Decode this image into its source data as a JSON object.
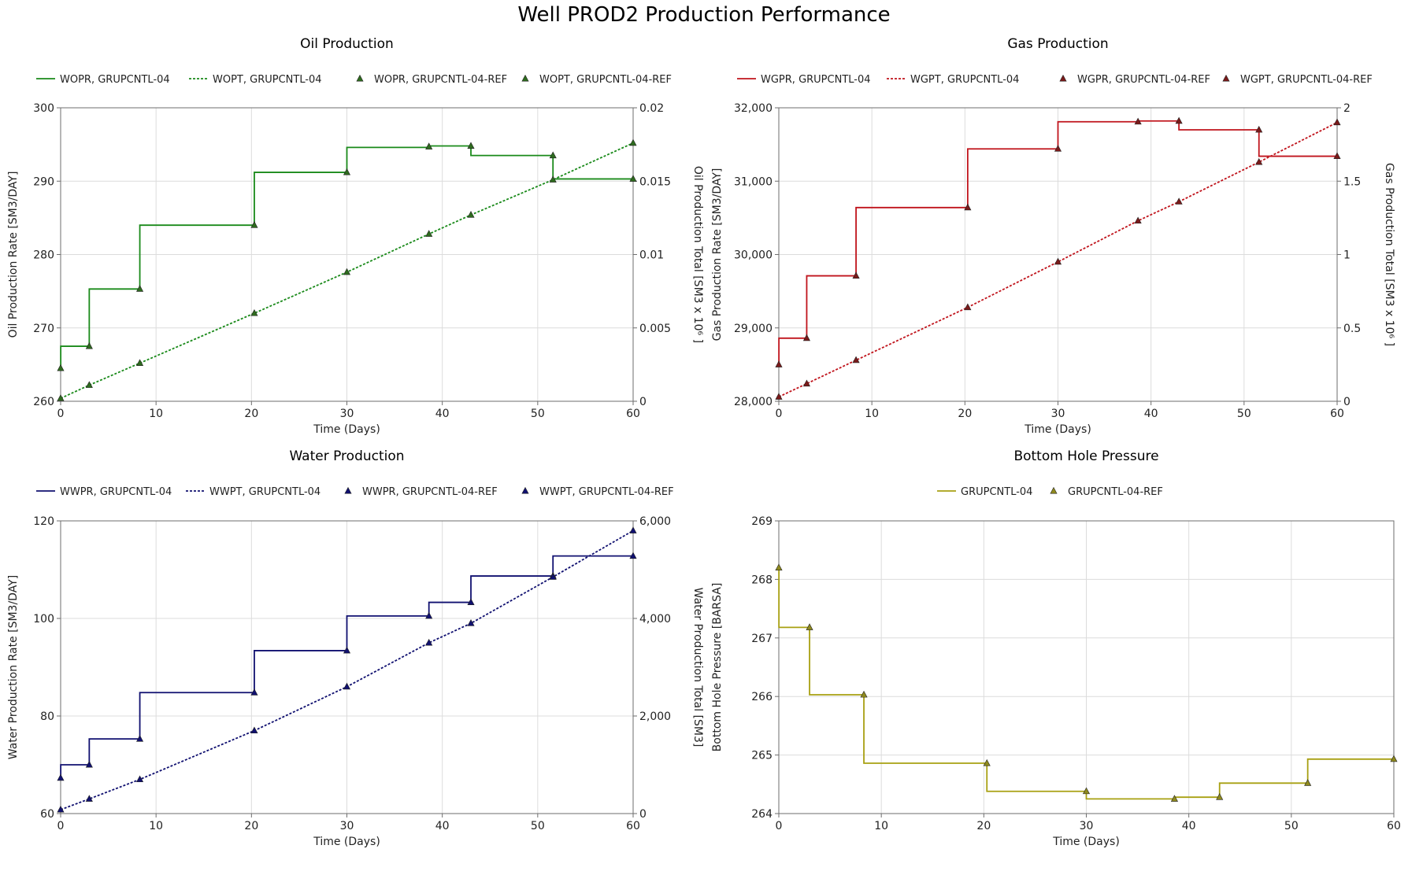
{
  "figure": {
    "title": "Well PROD2 Production Performance"
  },
  "chart_data": [
    {
      "type": "line",
      "title": "Oil Production",
      "xlabel": "Time (Days)",
      "ylabel": "Oil Production Rate [SM3/DAY]",
      "y2label": "Oil Production Total [SM3 x 10⁶ ]",
      "xlim": [
        0,
        60
      ],
      "ylim": [
        260,
        300
      ],
      "y2lim": [
        0,
        0.02
      ],
      "xticks": [
        "0",
        "10",
        "20",
        "30",
        "40",
        "50",
        "60"
      ],
      "yticks": [
        "260",
        "270",
        "280",
        "290",
        "300"
      ],
      "y2ticks": [
        "0",
        "0.005",
        "0.01",
        "0.015",
        "0.02"
      ],
      "grid": true,
      "legend_position": "top",
      "series": [
        {
          "name": "WOPR, GRUPCNTL-04",
          "axis": "left",
          "style": "step",
          "color": "#1a8a1a",
          "x": [
            0,
            0.01,
            3,
            8.3,
            20.3,
            30,
            38.6,
            43,
            51.6,
            60
          ],
          "y": [
            264.5,
            267.5,
            275.3,
            284,
            291.2,
            294.6,
            294.8,
            293.5,
            290.3,
            290.3
          ]
        },
        {
          "name": "WOPT, GRUPCNTL-04",
          "axis": "right",
          "style": "dotted",
          "color": "#1a8a1a",
          "x": [
            0,
            3,
            8.3,
            20.3,
            30,
            38.6,
            43,
            51.6,
            60
          ],
          "y": [
            0.0002,
            0.0011,
            0.0026,
            0.006,
            0.0088,
            0.0114,
            0.0127,
            0.0151,
            0.0176
          ]
        },
        {
          "name": "WOPR, GRUPCNTL-04-REF",
          "axis": "left",
          "style": "marker",
          "color": "#2e6b1e",
          "x": [
            0,
            3,
            8.3,
            20.3,
            30,
            38.6,
            43,
            51.6,
            60
          ],
          "y": [
            264.5,
            267.5,
            275.3,
            284,
            291.2,
            294.7,
            294.8,
            293.5,
            290.3
          ]
        },
        {
          "name": "WOPT, GRUPCNTL-04-REF",
          "axis": "right",
          "style": "marker",
          "color": "#2e6b1e",
          "x": [
            0,
            3,
            8.3,
            20.3,
            30,
            38.6,
            43,
            51.6,
            60
          ],
          "y": [
            0.0002,
            0.0011,
            0.0026,
            0.006,
            0.0088,
            0.0114,
            0.0127,
            0.0151,
            0.0176
          ]
        }
      ]
    },
    {
      "type": "line",
      "title": "Gas Production",
      "xlabel": "Time (Days)",
      "ylabel": "Gas Production Rate [SM3/DAY]",
      "y2label": "Gas Production Total [SM3 x 10⁶ ]",
      "xlim": [
        0,
        60
      ],
      "ylim": [
        28000,
        32000
      ],
      "y2lim": [
        0,
        2
      ],
      "xticks": [
        "0",
        "10",
        "20",
        "30",
        "40",
        "50",
        "60"
      ],
      "yticks": [
        "28,000",
        "29,000",
        "30,000",
        "31,000",
        "32,000"
      ],
      "y2ticks": [
        "0",
        "0.5",
        "1",
        "1.5",
        "2"
      ],
      "grid": true,
      "legend_position": "top",
      "series": [
        {
          "name": "WGPR, GRUPCNTL-04",
          "axis": "left",
          "style": "step",
          "color": "#c0141c",
          "x": [
            0,
            0.01,
            3,
            8.3,
            20.3,
            30,
            38.6,
            43,
            51.6,
            60
          ],
          "y": [
            28500,
            28860,
            29710,
            30640,
            31440,
            31810,
            31820,
            31700,
            31340,
            31340
          ]
        },
        {
          "name": "WGPT, GRUPCNTL-04",
          "axis": "right",
          "style": "dotted",
          "color": "#c0141c",
          "x": [
            0,
            3,
            8.3,
            20.3,
            30,
            38.6,
            43,
            51.6,
            60
          ],
          "y": [
            0.03,
            0.12,
            0.28,
            0.64,
            0.95,
            1.23,
            1.36,
            1.63,
            1.9
          ]
        },
        {
          "name": "WGPR, GRUPCNTL-04-REF",
          "axis": "left",
          "style": "marker",
          "color": "#7a1a1a",
          "x": [
            0,
            3,
            8.3,
            20.3,
            30,
            38.6,
            43,
            51.6,
            60
          ],
          "y": [
            28500,
            28860,
            29710,
            30640,
            31440,
            31810,
            31820,
            31700,
            31340
          ]
        },
        {
          "name": "WGPT, GRUPCNTL-04-REF",
          "axis": "right",
          "style": "marker",
          "color": "#7a1a1a",
          "x": [
            0,
            3,
            8.3,
            20.3,
            30,
            38.6,
            43,
            51.6,
            60
          ],
          "y": [
            0.03,
            0.12,
            0.28,
            0.64,
            0.95,
            1.23,
            1.36,
            1.63,
            1.9
          ]
        }
      ]
    },
    {
      "type": "line",
      "title": "Water Production",
      "xlabel": "Time (Days)",
      "ylabel": "Water Production Rate [SM3/DAY]",
      "y2label": "Water Production Total [SM3]",
      "xlim": [
        0,
        60
      ],
      "ylim": [
        60,
        120
      ],
      "y2lim": [
        0,
        6000
      ],
      "xticks": [
        "0",
        "10",
        "20",
        "30",
        "40",
        "50",
        "60"
      ],
      "yticks": [
        "60",
        "80",
        "100",
        "120"
      ],
      "y2ticks": [
        "0",
        "2,000",
        "4,000",
        "6,000"
      ],
      "grid": true,
      "legend_position": "top",
      "series": [
        {
          "name": "WWPR, GRUPCNTL-04",
          "axis": "left",
          "style": "step",
          "color": "#101070",
          "x": [
            0,
            0.01,
            3,
            8.3,
            20.3,
            30,
            38.6,
            43,
            51.6,
            60
          ],
          "y": [
            67.3,
            70,
            75.3,
            84.8,
            93.4,
            100.5,
            103.3,
            108.7,
            112.8,
            112.8
          ]
        },
        {
          "name": "WWPT, GRUPCNTL-04",
          "axis": "right",
          "style": "dotted",
          "color": "#101070",
          "x": [
            0,
            3,
            8.3,
            20.3,
            30,
            38.6,
            43,
            51.6,
            60
          ],
          "y": [
            80,
            300,
            700,
            1700,
            2600,
            3500,
            3900,
            4850,
            5800
          ]
        },
        {
          "name": "WWPR, GRUPCNTL-04-REF",
          "axis": "left",
          "style": "marker",
          "color": "#101070",
          "x": [
            0,
            3,
            8.3,
            20.3,
            30,
            38.6,
            43,
            51.6,
            60
          ],
          "y": [
            67.3,
            70,
            75.3,
            84.8,
            93.4,
            100.5,
            103.3,
            108.7,
            112.8
          ]
        },
        {
          "name": "WWPT, GRUPCNTL-04-REF",
          "axis": "right",
          "style": "marker",
          "color": "#101070",
          "x": [
            0,
            3,
            8.3,
            20.3,
            30,
            38.6,
            43,
            51.6,
            60
          ],
          "y": [
            80,
            300,
            700,
            1700,
            2600,
            3500,
            3900,
            4850,
            5800
          ]
        }
      ]
    },
    {
      "type": "line",
      "title": "Bottom Hole Pressure",
      "xlabel": "Time (Days)",
      "ylabel": "Bottom Hole Pressure [BARSA]",
      "xlim": [
        0,
        60
      ],
      "ylim": [
        264,
        269
      ],
      "xticks": [
        "0",
        "10",
        "20",
        "30",
        "40",
        "50",
        "60"
      ],
      "yticks": [
        "264",
        "265",
        "266",
        "267",
        "268",
        "269"
      ],
      "grid": true,
      "legend_position": "top",
      "series": [
        {
          "name": "GRUPCNTL-04",
          "axis": "left",
          "style": "step",
          "color": "#a8a012",
          "x": [
            0,
            0.01,
            3,
            8.3,
            20.3,
            30,
            38.6,
            43,
            51.6,
            60
          ],
          "y": [
            268.2,
            267.18,
            266.03,
            264.86,
            264.38,
            264.25,
            264.28,
            264.52,
            264.93,
            264.93
          ]
        },
        {
          "name": "GRUPCNTL-04-REF",
          "axis": "left",
          "style": "marker",
          "color": "#8f8a1e",
          "x": [
            0,
            3,
            8.3,
            20.3,
            30,
            38.6,
            43,
            51.6,
            60
          ],
          "y": [
            268.2,
            267.18,
            266.03,
            264.86,
            264.38,
            264.25,
            264.28,
            264.52,
            264.93
          ]
        }
      ]
    }
  ]
}
